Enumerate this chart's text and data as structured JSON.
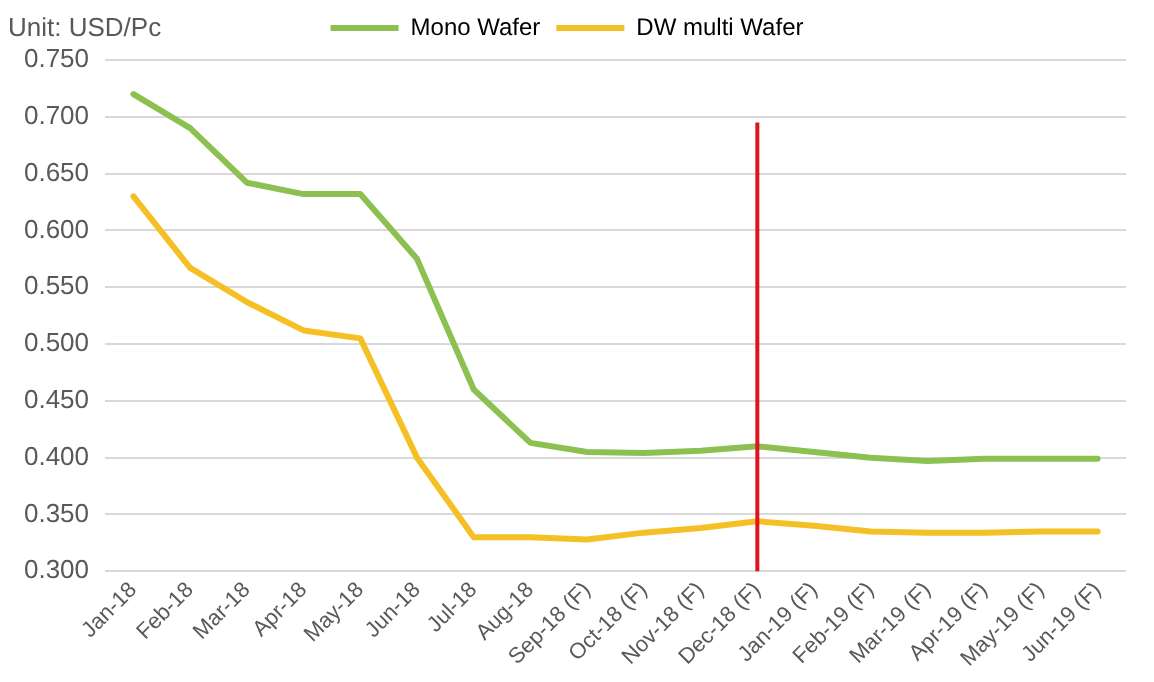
{
  "chart_data": {
    "type": "line",
    "ylabel": "Unit: USD/Pc",
    "categories": [
      "Jan-18",
      "Feb-18",
      "Mar-18",
      "Apr-18",
      "May-18",
      "Jun-18",
      "Jul-18",
      "Aug-18",
      "Sep-18 (F)",
      "Oct-18 (F)",
      "Nov-18 (F)",
      "Dec-18 (F)",
      "Jan-19 (F)",
      "Feb-19 (F)",
      "Mar-19 (F)",
      "Apr-19 (F)",
      "May-19 (F)",
      "Jun-19 (F)"
    ],
    "series": [
      {
        "name": "Mono Wafer",
        "color": "#8cc152",
        "values": [
          0.72,
          0.69,
          0.642,
          0.632,
          0.632,
          0.575,
          0.46,
          0.413,
          0.405,
          0.404,
          0.406,
          0.41,
          0.405,
          0.4,
          0.397,
          0.399,
          0.399,
          0.399
        ]
      },
      {
        "name": "DW multi Wafer",
        "color": "#f5c026",
        "values": [
          0.63,
          0.567,
          0.537,
          0.512,
          0.505,
          0.4,
          0.33,
          0.33,
          0.328,
          0.334,
          0.338,
          0.344,
          0.34,
          0.335,
          0.334,
          0.334,
          0.335,
          0.335
        ]
      }
    ],
    "ylim": [
      0.3,
      0.75
    ],
    "yticks": [
      {
        "value": 0.3,
        "label": "0.300"
      },
      {
        "value": 0.35,
        "label": "0.350"
      },
      {
        "value": 0.4,
        "label": "0.400"
      },
      {
        "value": 0.45,
        "label": "0.450"
      },
      {
        "value": 0.5,
        "label": "0.500"
      },
      {
        "value": 0.55,
        "label": "0.550"
      },
      {
        "value": 0.6,
        "label": "0.600"
      },
      {
        "value": 0.65,
        "label": "0.650"
      },
      {
        "value": 0.7,
        "label": "0.700"
      },
      {
        "value": 0.75,
        "label": "0.750"
      }
    ],
    "ref_lines": [
      {
        "axis": "x",
        "value": "Dec-18 (F)",
        "color": "#e0141e"
      }
    ],
    "grid": "y",
    "legend": "top",
    "marker": "none",
    "line_style": "solid"
  }
}
